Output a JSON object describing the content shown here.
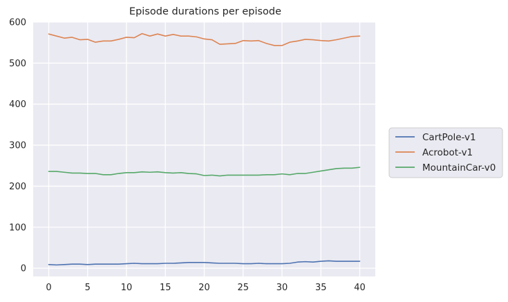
{
  "chart_data": {
    "type": "line",
    "title": "Episode durations per episode",
    "xlabel": "",
    "ylabel": "",
    "xlim": [
      -2,
      42
    ],
    "ylim": [
      -20,
      600
    ],
    "xticks": [
      0,
      5,
      10,
      15,
      20,
      25,
      30,
      35,
      40
    ],
    "yticks": [
      0,
      100,
      200,
      300,
      400,
      500,
      600
    ],
    "grid": true,
    "legend_position": "right",
    "x": [
      0,
      1,
      2,
      3,
      4,
      5,
      6,
      7,
      8,
      9,
      10,
      11,
      12,
      13,
      14,
      15,
      16,
      17,
      18,
      19,
      20,
      21,
      22,
      23,
      24,
      25,
      26,
      27,
      28,
      29,
      30,
      31,
      32,
      33,
      34,
      35,
      36,
      37,
      38,
      39,
      40
    ],
    "series": [
      {
        "name": "CartPole-v1",
        "color": "#4c72b0",
        "values": [
          9,
          8,
          9,
          10,
          10,
          9,
          10,
          10,
          10,
          10,
          11,
          12,
          11,
          11,
          11,
          12,
          12,
          13,
          14,
          14,
          14,
          13,
          12,
          12,
          12,
          11,
          11,
          12,
          11,
          11,
          11,
          12,
          15,
          16,
          15,
          17,
          18,
          17,
          17,
          17,
          17
        ]
      },
      {
        "name": "Acrobot-v1",
        "color": "#dd8452",
        "values": [
          571,
          566,
          561,
          563,
          557,
          558,
          551,
          554,
          554,
          558,
          563,
          562,
          572,
          566,
          571,
          566,
          570,
          566,
          566,
          564,
          559,
          557,
          546,
          547,
          548,
          555,
          554,
          555,
          548,
          543,
          543,
          551,
          554,
          558,
          557,
          555,
          554,
          557,
          561,
          565,
          566
        ]
      },
      {
        "name": "MountainCar-v0",
        "color": "#55a868",
        "values": [
          236,
          236,
          234,
          232,
          232,
          231,
          231,
          228,
          228,
          231,
          233,
          233,
          235,
          234,
          235,
          233,
          232,
          233,
          231,
          230,
          226,
          227,
          225,
          227,
          227,
          227,
          227,
          227,
          228,
          228,
          230,
          228,
          231,
          231,
          234,
          237,
          240,
          243,
          244,
          244,
          246
        ]
      }
    ]
  }
}
